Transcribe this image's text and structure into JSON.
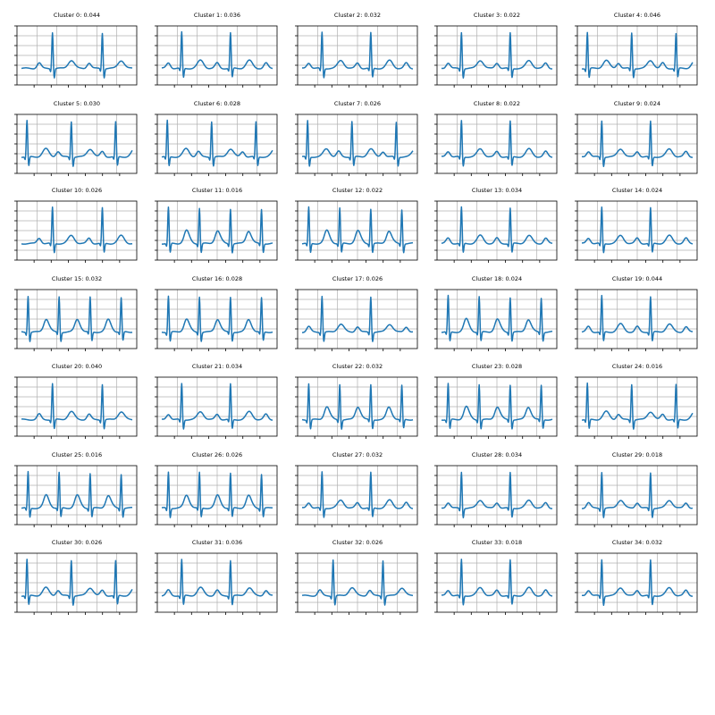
{
  "figure": {
    "background": "#ffffff"
  },
  "chart_data": {
    "type": "line",
    "layout": {
      "rows": 7,
      "cols": 5
    },
    "style": {
      "line_color": "#1f77b4",
      "grid": true,
      "grid_color": "#b0b0b0"
    },
    "panels": [
      {
        "title": "Cluster 0: 0.044",
        "pattern": "qrs_double_rr_long"
      },
      {
        "title": "Cluster 1: 0.036",
        "pattern": "normal_sinus"
      },
      {
        "title": "Cluster 2: 0.032",
        "pattern": "normal_sinus"
      },
      {
        "title": "Cluster 3: 0.022",
        "pattern": "normal_sinus"
      },
      {
        "title": "Cluster 4: 0.046",
        "pattern": "triple_beat"
      },
      {
        "title": "Cluster 5: 0.030",
        "pattern": "triple_beat"
      },
      {
        "title": "Cluster 6: 0.028",
        "pattern": "triple_beat"
      },
      {
        "title": "Cluster 7: 0.026",
        "pattern": "triple_beat"
      },
      {
        "title": "Cluster 8: 0.022",
        "pattern": "normal_sinus"
      },
      {
        "title": "Cluster 9: 0.024",
        "pattern": "normal_sinus"
      },
      {
        "title": "Cluster 10: 0.026",
        "pattern": "qrs_double_rr_long"
      },
      {
        "title": "Cluster 11: 0.016",
        "pattern": "tachy"
      },
      {
        "title": "Cluster 12: 0.022",
        "pattern": "tachy"
      },
      {
        "title": "Cluster 13: 0.034",
        "pattern": "normal_sinus"
      },
      {
        "title": "Cluster 14: 0.024",
        "pattern": "normal_sinus"
      },
      {
        "title": "Cluster 15: 0.032",
        "pattern": "tachy"
      },
      {
        "title": "Cluster 16: 0.028",
        "pattern": "tachy"
      },
      {
        "title": "Cluster 17: 0.026",
        "pattern": "normal_sinus"
      },
      {
        "title": "Cluster 18: 0.024",
        "pattern": "tachy"
      },
      {
        "title": "Cluster 19: 0.044",
        "pattern": "normal_sinus"
      },
      {
        "title": "Cluster 20: 0.040",
        "pattern": "qrs_double_rr_long"
      },
      {
        "title": "Cluster 21: 0.034",
        "pattern": "normal_sinus"
      },
      {
        "title": "Cluster 22: 0.032",
        "pattern": "tachy"
      },
      {
        "title": "Cluster 23: 0.028",
        "pattern": "tachy"
      },
      {
        "title": "Cluster 24: 0.016",
        "pattern": "triple_beat"
      },
      {
        "title": "Cluster 25: 0.016",
        "pattern": "tachy"
      },
      {
        "title": "Cluster 26: 0.026",
        "pattern": "tachy"
      },
      {
        "title": "Cluster 27: 0.032",
        "pattern": "normal_sinus"
      },
      {
        "title": "Cluster 28: 0.034",
        "pattern": "normal_sinus"
      },
      {
        "title": "Cluster 29: 0.018",
        "pattern": "normal_sinus"
      },
      {
        "title": "Cluster 30: 0.026",
        "pattern": "triple_beat"
      },
      {
        "title": "Cluster 31: 0.036",
        "pattern": "normal_sinus"
      },
      {
        "title": "Cluster 32: 0.026",
        "pattern": "qrs_double_rr_long"
      },
      {
        "title": "Cluster 33: 0.018",
        "pattern": "normal_sinus"
      },
      {
        "title": "Cluster 34: 0.032",
        "pattern": "normal_sinus"
      }
    ]
  }
}
